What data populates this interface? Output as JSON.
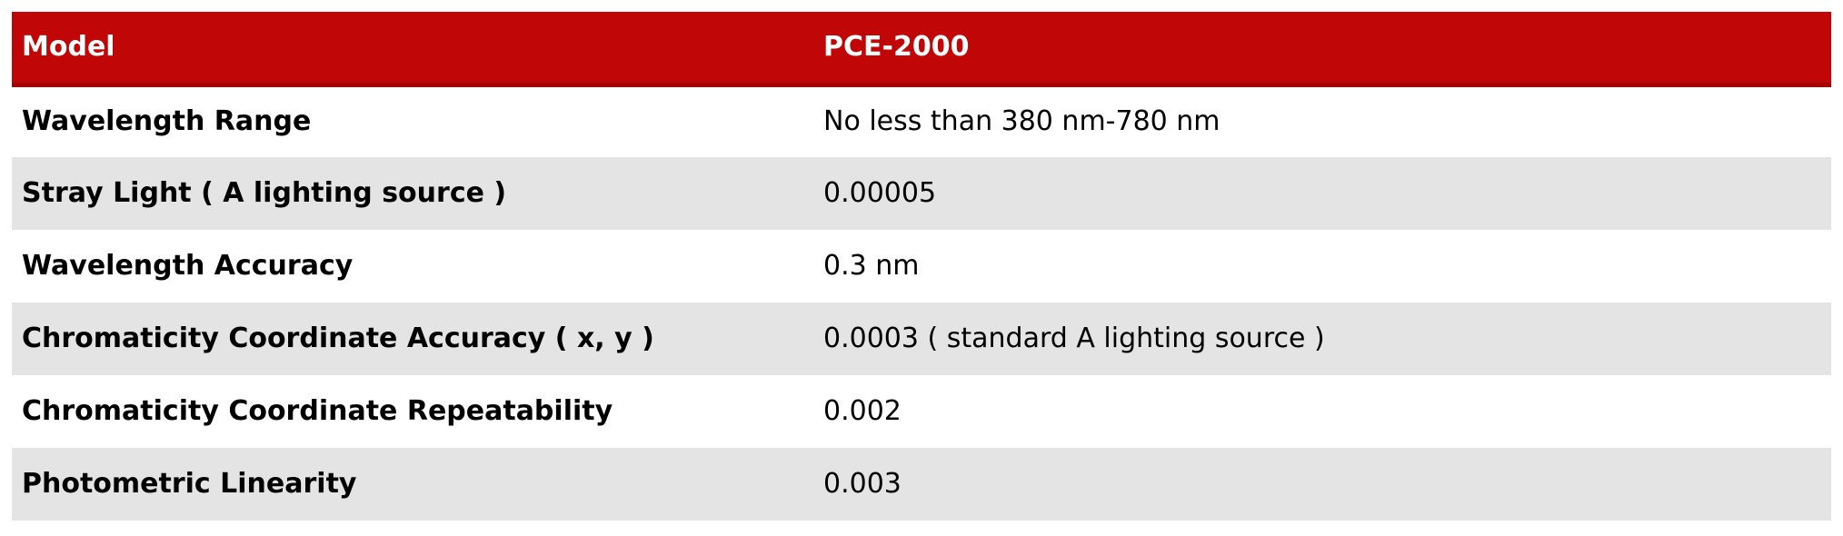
{
  "colors": {
    "header_bg": "#c00606",
    "header_border_bottom": "#a30404",
    "header_text": "#ffffff",
    "row_alt_bg": "#e4e4e4",
    "row_bg": "#ffffff",
    "body_text": "#000000"
  },
  "table": {
    "header": {
      "param": "Model",
      "value": "PCE-2000"
    },
    "rows": [
      {
        "param": "Wavelength Range",
        "value": "No less than 380 nm-780 nm"
      },
      {
        "param": "Stray Light ( A lighting source )",
        "value": "0.00005"
      },
      {
        "param": "Wavelength Accuracy",
        "value": "0.3 nm"
      },
      {
        "param": "Chromaticity Coordinate Accuracy ( x, y )",
        "value": "0.0003 ( standard A lighting source )"
      },
      {
        "param": "Chromaticity Coordinate Repeatability",
        "value": "0.002"
      },
      {
        "param": "Photometric Linearity",
        "value": "0.003"
      }
    ]
  }
}
